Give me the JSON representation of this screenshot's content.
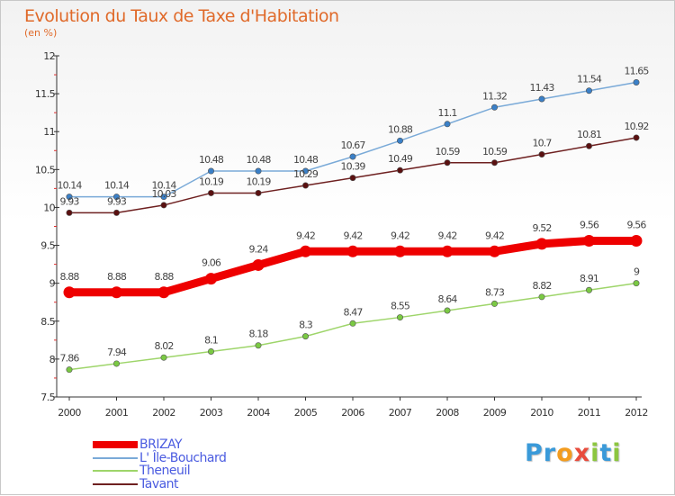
{
  "title": "Evolution du Taux de Taxe d'Habitation",
  "unit": "(en %)",
  "logo": {
    "text": "Proxiti",
    "letters": [
      {
        "ch": "P",
        "color": "#3a9ad9"
      },
      {
        "ch": "r",
        "color": "#3a9ad9"
      },
      {
        "ch": "o",
        "color": "#f39c1f"
      },
      {
        "ch": "x",
        "color": "#e84c3d"
      },
      {
        "ch": "i",
        "color": "#8cc63f"
      },
      {
        "ch": "t",
        "color": "#3a9ad9"
      },
      {
        "ch": "i",
        "color": "#8cc63f"
      }
    ]
  },
  "chart_data": {
    "type": "line",
    "title": "Evolution du Taux de Taxe d'Habitation",
    "ylabel": "(en %)",
    "xlabel": "",
    "x": [
      2000,
      2001,
      2002,
      2003,
      2004,
      2005,
      2006,
      2007,
      2008,
      2009,
      2010,
      2011,
      2012
    ],
    "ylim": [
      7.5,
      12
    ],
    "yticks": [
      7.5,
      8,
      8.5,
      9,
      9.5,
      10,
      10.5,
      11,
      11.5,
      12
    ],
    "ytick_labels": [
      "7.5",
      "8",
      "8.5",
      "9",
      "9.5",
      "10",
      "10.5",
      "11",
      "11.5",
      "12"
    ],
    "grid": false,
    "legend_position": "bottom-left",
    "series": [
      {
        "name": "BRIZAY",
        "color": "#ee0000",
        "marker": "#ee0000",
        "width": 9,
        "values": [
          8.88,
          8.88,
          8.88,
          9.06,
          9.24,
          9.42,
          9.42,
          9.42,
          9.42,
          9.42,
          9.52,
          9.56,
          9.56
        ],
        "labels": [
          "8.88",
          "8.88",
          "8.88",
          "9.06",
          "9.24",
          "9.42",
          "9.42",
          "9.42",
          "9.42",
          "9.42",
          "9.52",
          "9.56",
          "9.56"
        ]
      },
      {
        "name": "L' Île-Bouchard",
        "color": "#7aaad8",
        "marker": "#3a80c8",
        "width": 1.5,
        "values": [
          10.14,
          10.14,
          10.14,
          10.48,
          10.48,
          10.48,
          10.67,
          10.88,
          11.1,
          11.32,
          11.43,
          11.54,
          11.65
        ],
        "labels": [
          "10.14",
          "10.14",
          "10.14",
          "10.48",
          "10.48",
          "10.48",
          "10.67",
          "10.88",
          "11.1",
          "11.32",
          "11.43",
          "11.54",
          "11.65"
        ]
      },
      {
        "name": "Theneuil",
        "color": "#9ed56a",
        "marker": "#7ac943",
        "width": 1.5,
        "values": [
          7.86,
          7.94,
          8.02,
          8.1,
          8.18,
          8.3,
          8.47,
          8.55,
          8.64,
          8.73,
          8.82,
          8.91,
          9
        ],
        "labels": [
          "7.86",
          "7.94",
          "8.02",
          "8.1",
          "8.18",
          "8.3",
          "8.47",
          "8.55",
          "8.64",
          "8.73",
          "8.82",
          "8.91",
          "9"
        ]
      },
      {
        "name": "Tavant",
        "color": "#6e2020",
        "marker": "#5a1010",
        "width": 1.5,
        "values": [
          9.93,
          9.93,
          10.03,
          10.19,
          10.19,
          10.29,
          10.39,
          10.49,
          10.59,
          10.59,
          10.7,
          10.81,
          10.92
        ],
        "labels": [
          "9.93",
          "9.93",
          "10.03",
          "10.19",
          "10.19",
          "10.29",
          "10.39",
          "10.49",
          "10.59",
          "10.59",
          "10.7",
          "10.81",
          "10.92"
        ]
      }
    ]
  }
}
